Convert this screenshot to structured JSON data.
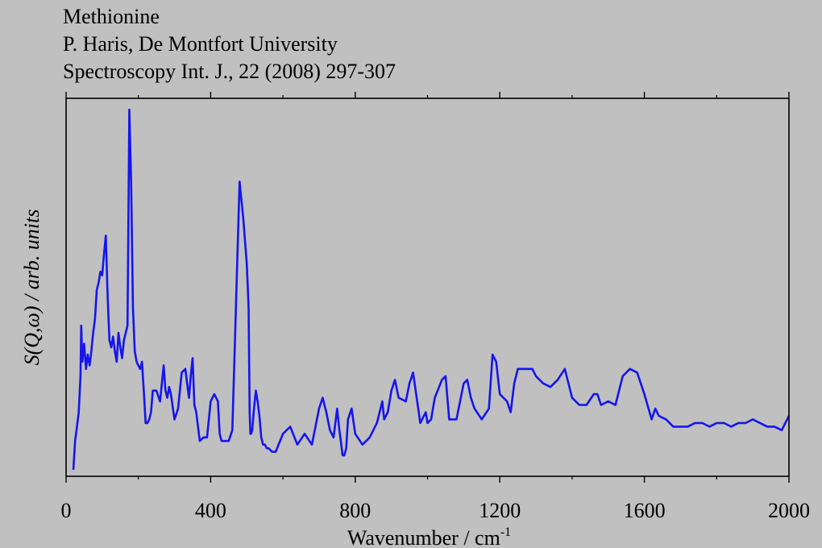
{
  "header": {
    "line1": "Methionine",
    "line2": "P. Haris, De Montfort University",
    "line3": "Spectroscopy Int. J., 22 (2008) 297-307"
  },
  "chart_data": {
    "type": "line",
    "title": "Methionine",
    "xlabel": "Wavenumber / cm",
    "xlabel_superscript": "-1",
    "ylabel": "S(Q,ω) / arb. units",
    "xlim": [
      0,
      2000
    ],
    "ylim": [
      0,
      1
    ],
    "x_ticks": [
      0,
      400,
      800,
      1200,
      1600,
      2000
    ],
    "x_tick_labels": [
      "0",
      "400",
      "800",
      "1200",
      "1600",
      "2000"
    ],
    "grid": false,
    "legend": "none",
    "line_color": "#1515f0",
    "series": [
      {
        "x": [
          20,
          25,
          30,
          35,
          40,
          42,
          45,
          50,
          55,
          60,
          65,
          70,
          75,
          80,
          85,
          90,
          95,
          100,
          105,
          110,
          115,
          120,
          125,
          130,
          135,
          140,
          145,
          150,
          155,
          160,
          165,
          170,
          175,
          180,
          185,
          190,
          195,
          200,
          205,
          210,
          215,
          220,
          225,
          230,
          235,
          240,
          250,
          260,
          270,
          275,
          280,
          285,
          290,
          300,
          310,
          320,
          330,
          335,
          340,
          345,
          350,
          355,
          360,
          365,
          370,
          380,
          390,
          400,
          410,
          420,
          425,
          430,
          440,
          450,
          460,
          480,
          490,
          500,
          505,
          508,
          510,
          512,
          515,
          520,
          525,
          530,
          535,
          540,
          545,
          550,
          555,
          560,
          570,
          580,
          600,
          620,
          640,
          660,
          680,
          690,
          700,
          710,
          720,
          730,
          740,
          750,
          755,
          760,
          765,
          770,
          775,
          780,
          790,
          800,
          820,
          840,
          860,
          875,
          880,
          890,
          900,
          910,
          920,
          940,
          950,
          960,
          980,
          995,
          1000,
          1010,
          1020,
          1040,
          1050,
          1060,
          1080,
          1100,
          1110,
          1120,
          1130,
          1150,
          1170,
          1180,
          1190,
          1200,
          1220,
          1230,
          1240,
          1250,
          1270,
          1290,
          1300,
          1320,
          1340,
          1360,
          1380,
          1400,
          1420,
          1440,
          1460,
          1470,
          1480,
          1500,
          1520,
          1540,
          1560,
          1580,
          1600,
          1620,
          1630,
          1640,
          1660,
          1680,
          1700,
          1720,
          1740,
          1760,
          1780,
          1800,
          1820,
          1840,
          1860,
          1880,
          1900,
          1920,
          1940,
          1960,
          1980,
          2000
        ],
        "y": [
          0.0,
          0.08,
          0.12,
          0.16,
          0.26,
          0.4,
          0.3,
          0.35,
          0.28,
          0.32,
          0.29,
          0.33,
          0.38,
          0.42,
          0.5,
          0.52,
          0.55,
          0.54,
          0.6,
          0.65,
          0.48,
          0.36,
          0.34,
          0.37,
          0.33,
          0.3,
          0.38,
          0.34,
          0.31,
          0.36,
          0.38,
          0.4,
          1.0,
          0.8,
          0.45,
          0.33,
          0.3,
          0.29,
          0.28,
          0.3,
          0.22,
          0.13,
          0.13,
          0.14,
          0.16,
          0.22,
          0.22,
          0.19,
          0.29,
          0.22,
          0.2,
          0.23,
          0.21,
          0.14,
          0.17,
          0.27,
          0.28,
          0.24,
          0.2,
          0.26,
          0.31,
          0.18,
          0.16,
          0.12,
          0.08,
          0.09,
          0.09,
          0.19,
          0.21,
          0.19,
          0.1,
          0.08,
          0.08,
          0.08,
          0.11,
          0.8,
          0.7,
          0.57,
          0.45,
          0.16,
          0.1,
          0.1,
          0.11,
          0.17,
          0.22,
          0.19,
          0.15,
          0.09,
          0.07,
          0.07,
          0.06,
          0.06,
          0.05,
          0.05,
          0.1,
          0.12,
          0.07,
          0.1,
          0.07,
          0.12,
          0.17,
          0.2,
          0.16,
          0.11,
          0.09,
          0.17,
          0.12,
          0.08,
          0.04,
          0.04,
          0.06,
          0.14,
          0.17,
          0.1,
          0.07,
          0.09,
          0.13,
          0.19,
          0.14,
          0.16,
          0.22,
          0.25,
          0.2,
          0.19,
          0.24,
          0.27,
          0.13,
          0.16,
          0.13,
          0.14,
          0.2,
          0.25,
          0.26,
          0.14,
          0.14,
          0.24,
          0.25,
          0.2,
          0.17,
          0.14,
          0.17,
          0.32,
          0.3,
          0.21,
          0.19,
          0.16,
          0.24,
          0.28,
          0.28,
          0.28,
          0.26,
          0.24,
          0.23,
          0.25,
          0.28,
          0.2,
          0.18,
          0.18,
          0.21,
          0.21,
          0.18,
          0.19,
          0.18,
          0.26,
          0.28,
          0.27,
          0.21,
          0.14,
          0.17,
          0.15,
          0.14,
          0.12,
          0.12,
          0.12,
          0.13,
          0.13,
          0.12,
          0.13,
          0.13,
          0.12,
          0.13,
          0.13,
          0.14,
          0.13,
          0.12,
          0.12,
          0.11,
          0.15
        ]
      }
    ]
  }
}
